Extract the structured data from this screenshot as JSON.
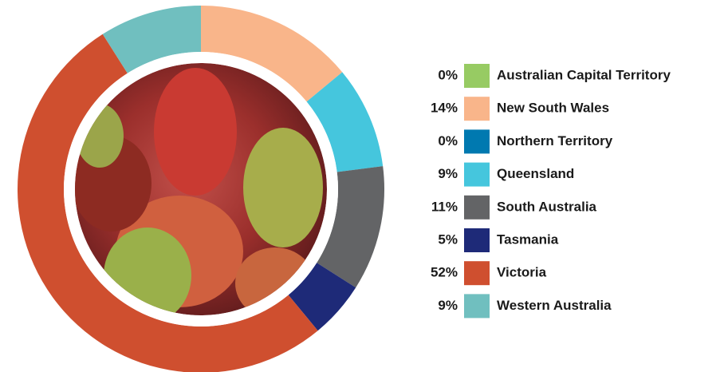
{
  "chart_data": {
    "type": "donut",
    "categories": [
      "Australian Capital Territory",
      "New South Wales",
      "Northern Territory",
      "Queensland",
      "South Australia",
      "Tasmania",
      "Victoria",
      "Western Australia"
    ],
    "values": [
      0,
      14,
      0,
      9,
      11,
      5,
      52,
      9
    ],
    "value_labels": [
      "0%",
      "14%",
      "0%",
      "9%",
      "11%",
      "5%",
      "52%",
      "9%"
    ],
    "colors": [
      "#97cb63",
      "#f9b58a",
      "#0079b0",
      "#45c6dd",
      "#636466",
      "#1e2a78",
      "#cf4f2f",
      "#70bfbf"
    ],
    "legend": "right"
  }
}
